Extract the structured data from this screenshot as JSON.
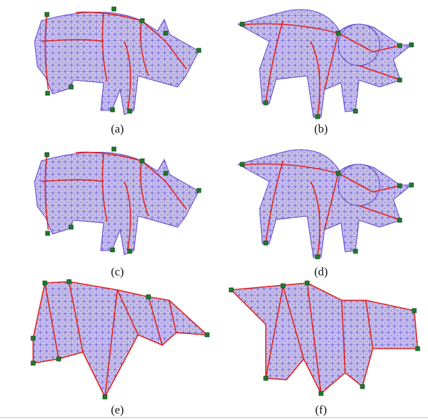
{
  "captions": [
    "(a)",
    "(b)",
    "(c)",
    "(d)",
    "(e)",
    "(f)"
  ]
}
